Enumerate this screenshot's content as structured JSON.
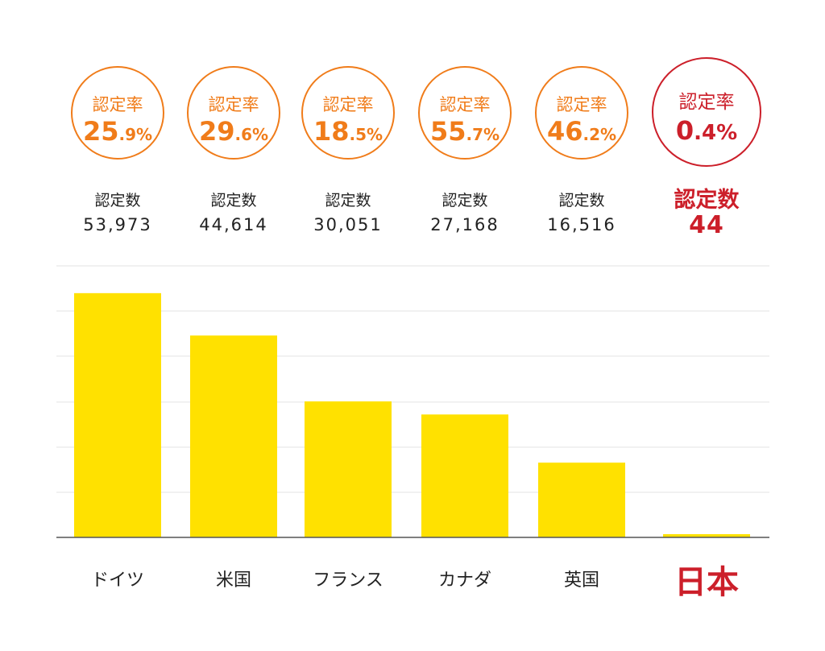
{
  "chart_data": {
    "type": "bar",
    "categories": [
      "ドイツ",
      "米国",
      "フランス",
      "カナダ",
      "英国",
      "日本"
    ],
    "values": [
      53973,
      44614,
      30051,
      27168,
      16516,
      44
    ],
    "highlight_category": "日本",
    "rate_label": "認定率",
    "count_label": "認定数",
    "rates": [
      {
        "int": "25",
        "dec": ".9%"
      },
      {
        "int": "29",
        "dec": ".6%"
      },
      {
        "int": "18",
        "dec": ".5%"
      },
      {
        "int": "55",
        "dec": ".7%"
      },
      {
        "int": "46",
        "dec": ".2%"
      },
      {
        "int": "0",
        "dec": ".4%"
      }
    ],
    "counts_display": [
      "53,973",
      "44,614",
      "30,051",
      "27,168",
      "16,516",
      "44"
    ],
    "grid": true,
    "colors": {
      "bar": "#ffe100",
      "rate": "#f07c1a",
      "highlight": "#cc1f2a",
      "grid": "#e3e3e3",
      "axis": "#555555"
    }
  }
}
